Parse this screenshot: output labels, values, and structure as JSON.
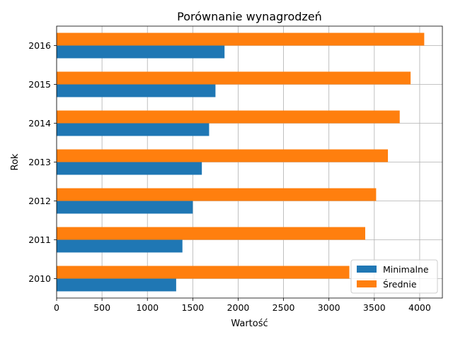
{
  "chart_data": {
    "type": "bar",
    "orientation": "horizontal",
    "title": "Porównanie wynagrodzeń",
    "xlabel": "Wartość",
    "ylabel": "Rok",
    "categories": [
      "2010",
      "2011",
      "2012",
      "2013",
      "2014",
      "2015",
      "2016"
    ],
    "series": [
      {
        "name": "Minimalne",
        "color": "#1f77b4",
        "values": [
          1317,
          1386,
          1500,
          1600,
          1680,
          1750,
          1850
        ]
      },
      {
        "name": "Średnie",
        "color": "#ff7f0e",
        "values": [
          3225,
          3400,
          3520,
          3650,
          3780,
          3900,
          4050
        ]
      }
    ],
    "xlim": [
      0,
      4250
    ],
    "xticks": [
      0,
      500,
      1000,
      1500,
      2000,
      2500,
      3000,
      3500,
      4000
    ],
    "grid": true,
    "legend_position": "lower-right"
  }
}
